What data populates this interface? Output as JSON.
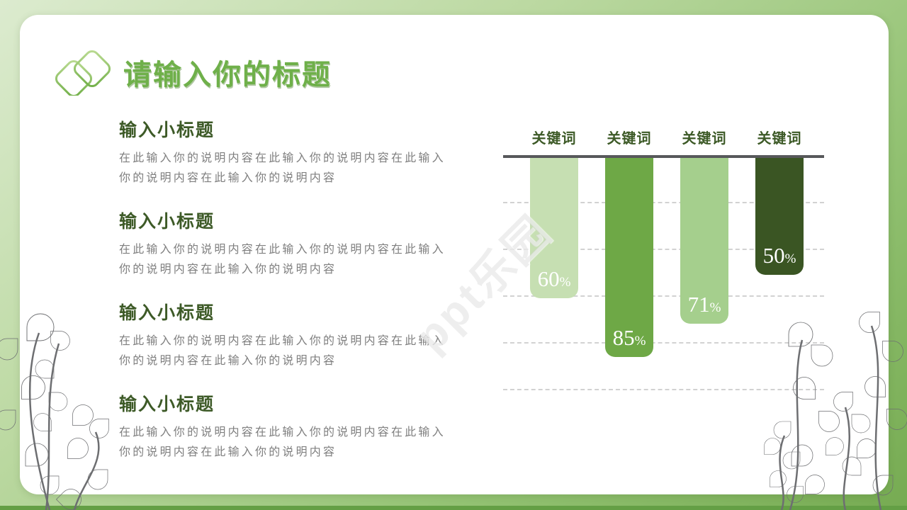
{
  "header": {
    "title": "请输入你的标题",
    "icon": "overlapping-diamonds"
  },
  "sections": [
    {
      "heading": "输入小标题",
      "body": "在此输入你的说明内容在此输入你的说明内容在此输入你的说明内容在此输入你的说明内容"
    },
    {
      "heading": "输入小标题",
      "body": "在此输入你的说明内容在此输入你的说明内容在此输入你的说明内容在此输入你的说明内容"
    },
    {
      "heading": "输入小标题",
      "body": "在此输入你的说明内容在此输入你的说明内容在此输入你的说明内容在此输入你的说明内容"
    },
    {
      "heading": "输入小标题",
      "body": "在此输入你的说明内容在此输入你的说明内容在此输入你的说明内容在此输入你的说明内容"
    }
  ],
  "chart_data": {
    "type": "bar",
    "orientation": "hanging-from-top",
    "categories": [
      "关键词",
      "关键词",
      "关键词",
      "关键词"
    ],
    "values": [
      60,
      85,
      71,
      50
    ],
    "unit": "%",
    "bar_colors": [
      "#c6dfb2",
      "#6ea846",
      "#a5cf8d",
      "#3a5523"
    ],
    "baseline_color": "#57585b",
    "ylim": [
      0,
      100
    ],
    "gridlines": {
      "step": 20,
      "count": 5,
      "style": "dashed"
    },
    "legend": "none",
    "title": ""
  },
  "watermark": {
    "text": "ppt乐园"
  },
  "colors": {
    "title_green": "#6fb04a",
    "heading_green": "#3d5a27",
    "body_gray": "#7f7f7f",
    "frame_gradient": [
      "#dcebcf",
      "#76ab52"
    ],
    "leaf_cyan": "#7ddde9",
    "leaf_pink": "#f2b1cb",
    "leaf_pale_pink": "#f8e4e4",
    "leaf_green": "#a6cf8b"
  }
}
